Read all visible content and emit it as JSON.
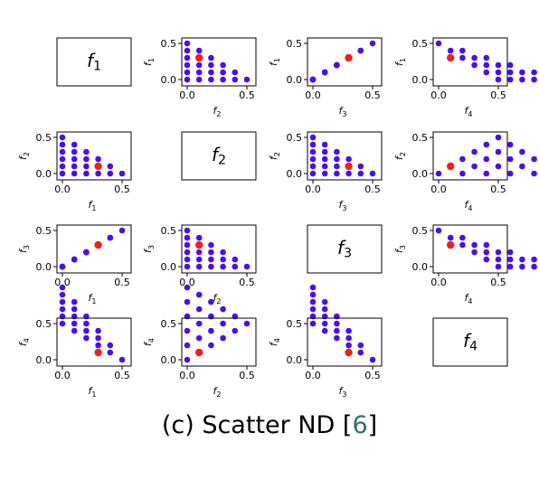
{
  "chart_data": {
    "type": "scatter",
    "layout": "pairwise-matrix",
    "variables": [
      "f",
      "f",
      "f",
      "f"
    ],
    "subscripts": [
      "1",
      "2",
      "3",
      "4"
    ],
    "x_ticks": [
      "0.0",
      "0.5"
    ],
    "y_ticks": [
      "0.0",
      "0.5"
    ],
    "xlim": [
      -0.03,
      0.53
    ],
    "ylim": [
      -0.04,
      0.56
    ],
    "point_color": "#4b0df0",
    "highlight_color": "#f51d1d",
    "grid": false,
    "points": [
      [
        0.0,
        0.0,
        0.0,
        1.0
      ],
      [
        0.0,
        0.1,
        0.0,
        0.9
      ],
      [
        0.0,
        0.2,
        0.0,
        0.8
      ],
      [
        0.0,
        0.3,
        0.0,
        0.7
      ],
      [
        0.0,
        0.4,
        0.0,
        0.6
      ],
      [
        0.0,
        0.5,
        0.0,
        0.5
      ],
      [
        0.1,
        0.0,
        0.1,
        0.8
      ],
      [
        0.1,
        0.1,
        0.1,
        0.7
      ],
      [
        0.1,
        0.2,
        0.1,
        0.6
      ],
      [
        0.1,
        0.3,
        0.1,
        0.5
      ],
      [
        0.1,
        0.4,
        0.1,
        0.4
      ],
      [
        0.2,
        0.0,
        0.2,
        0.6
      ],
      [
        0.2,
        0.1,
        0.2,
        0.5
      ],
      [
        0.2,
        0.2,
        0.2,
        0.4
      ],
      [
        0.2,
        0.3,
        0.2,
        0.3
      ],
      [
        0.3,
        0.0,
        0.3,
        0.4
      ],
      [
        0.3,
        0.1,
        0.3,
        0.3
      ],
      [
        0.3,
        0.2,
        0.3,
        0.2
      ],
      [
        0.4,
        0.0,
        0.4,
        0.2
      ],
      [
        0.4,
        0.1,
        0.4,
        0.1
      ],
      [
        0.5,
        0.0,
        0.5,
        0.0
      ]
    ],
    "highlight": [
      0.3,
      0.1,
      0.3,
      0.1
    ]
  },
  "caption": {
    "text": "(c) Scatter ND [",
    "ref": "6",
    "close": "]"
  }
}
